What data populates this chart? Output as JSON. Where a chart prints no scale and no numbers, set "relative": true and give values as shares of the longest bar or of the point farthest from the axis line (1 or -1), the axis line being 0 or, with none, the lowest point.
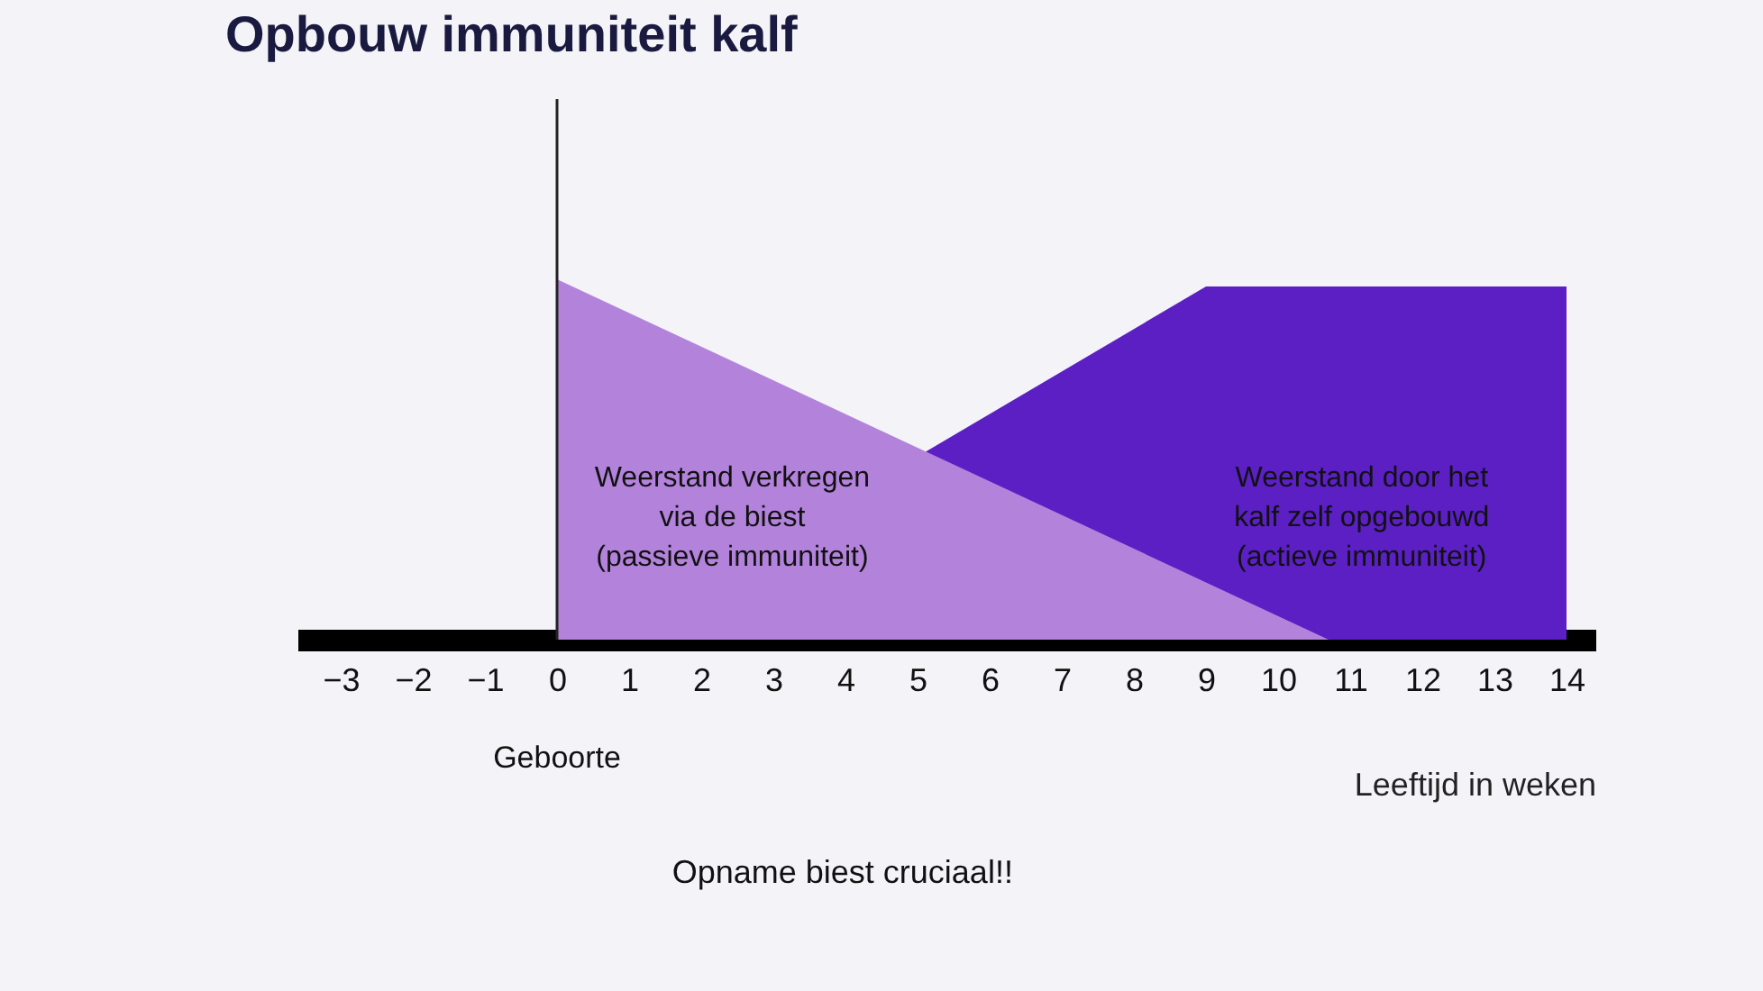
{
  "chart_data": {
    "type": "area",
    "title": "Opbouw immuniteit kalf",
    "xlabel": "Leeftijd in weken",
    "relative": true,
    "xlim": [
      -3.6,
      14.4
    ],
    "xticks": [
      -3,
      -2,
      -1,
      0,
      1,
      2,
      3,
      4,
      5,
      6,
      7,
      8,
      9,
      10,
      11,
      12,
      13,
      14
    ],
    "series": [
      {
        "color": "#5b1fc4",
        "x": [
          5.1,
          9,
          14
        ],
        "values": [
          0.52,
          0.98,
          0.98
        ]
      },
      {
        "color": "#b383dc",
        "x": [
          0,
          10.7
        ],
        "values": [
          1,
          0
        ]
      }
    ],
    "ref_lines": [
      {
        "axis": "x",
        "value": 0,
        "label": "Geboorte"
      }
    ],
    "annotations": [
      "Weerstand verkregen\nvia de biest\n(passieve immuniteit)",
      "Weerstand door het\nkalf zelf opgebouwd\n(actieve immuniteit)",
      "Opname biest cruciaal!!"
    ],
    "grid": false
  }
}
